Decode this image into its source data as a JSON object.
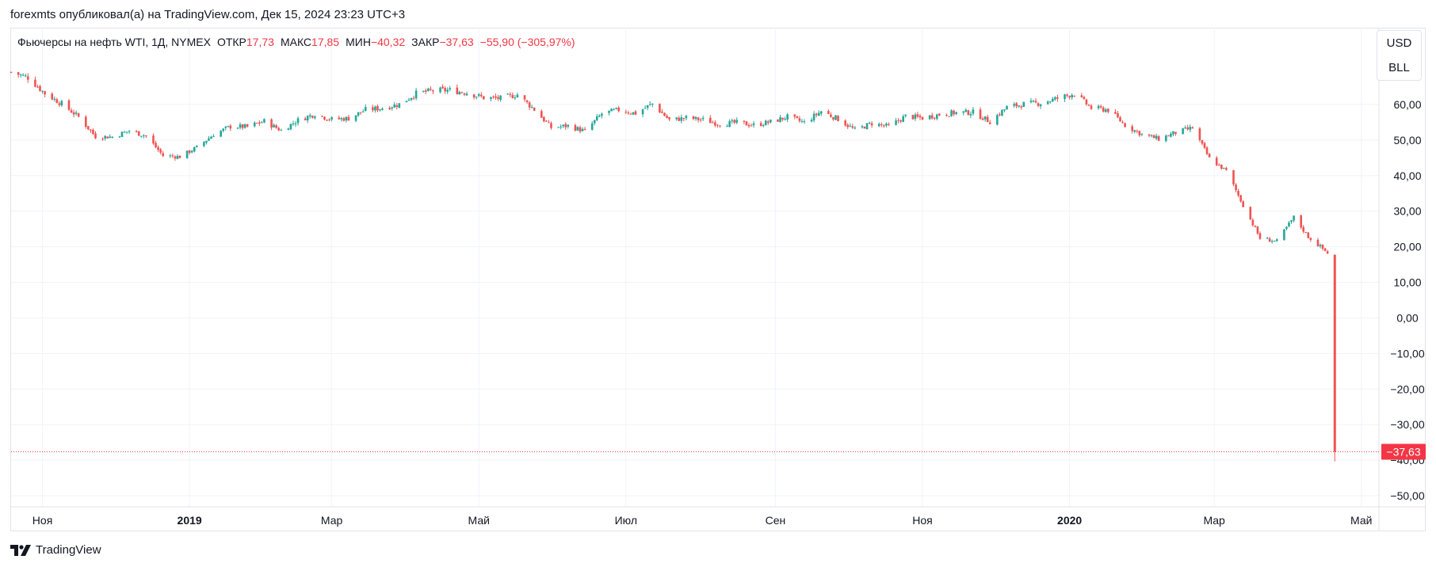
{
  "header": {
    "published": "forexmts опубликовал(а) на TradingView.com, Дек 15, 2024 23:23 UTC+3"
  },
  "legend": {
    "symbol": "Фьючерсы на нефть WTI, 1Д, NYMEX",
    "open_label": "ОТКР",
    "open": "17,73",
    "high_label": "МАКС",
    "high": "17,85",
    "low_label": "МИН",
    "low": "−40,32",
    "close_label": "ЗАКР",
    "close": "−37,63",
    "change": "−55,90 (−305,97%)"
  },
  "currency": {
    "unit": "USD",
    "measure": "BLL"
  },
  "footer": {
    "brand": "TradingView"
  },
  "colors": {
    "up": "#26a69a",
    "down": "#ef5350",
    "grid": "#f0f3fa",
    "price_line": "#f23645"
  },
  "chart_data": {
    "type": "candlestick",
    "title": "Фьючерсы на нефть WTI, 1Д, NYMEX",
    "ylim": [
      -52,
      70
    ],
    "y_ticks": [
      60,
      50,
      40,
      30,
      20,
      10,
      0,
      -10,
      -20,
      -30,
      -40,
      -50
    ],
    "y_tick_labels": [
      "60,00",
      "50,00",
      "40,00",
      "30,00",
      "20,00",
      "10,00",
      "0,00",
      "−10,00",
      "−20,00",
      "−30,00",
      "−40,00",
      "−50,00"
    ],
    "x_range": [
      "2018-10-19",
      "2020-05-07"
    ],
    "x_ticks": [
      {
        "date": "2018-11-01",
        "label": "Ноя",
        "bold": false
      },
      {
        "date": "2019-01-01",
        "label": "2019",
        "bold": true
      },
      {
        "date": "2019-03-01",
        "label": "Мар",
        "bold": false
      },
      {
        "date": "2019-05-01",
        "label": "Май",
        "bold": false
      },
      {
        "date": "2019-07-01",
        "label": "Июл",
        "bold": false
      },
      {
        "date": "2019-09-01",
        "label": "Сен",
        "bold": false
      },
      {
        "date": "2019-11-01",
        "label": "Ноя",
        "bold": false
      },
      {
        "date": "2020-01-01",
        "label": "2020",
        "bold": true
      },
      {
        "date": "2020-03-01",
        "label": "Мар",
        "bold": false
      },
      {
        "date": "2020-05-01",
        "label": "Май",
        "bold": false
      }
    ],
    "close_series": [
      [
        "2018-10-19",
        69.1
      ],
      [
        "2018-10-26",
        67.6
      ],
      [
        "2018-11-02",
        63.1
      ],
      [
        "2018-11-09",
        60.2
      ],
      [
        "2018-11-16",
        56.5
      ],
      [
        "2018-11-23",
        51.0
      ],
      [
        "2018-11-30",
        50.9
      ],
      [
        "2018-12-07",
        52.6
      ],
      [
        "2018-12-14",
        51.2
      ],
      [
        "2018-12-21",
        45.6
      ],
      [
        "2018-12-28",
        45.3
      ],
      [
        "2019-01-04",
        47.9
      ],
      [
        "2019-01-11",
        51.6
      ],
      [
        "2019-01-18",
        53.8
      ],
      [
        "2019-01-25",
        53.7
      ],
      [
        "2019-02-01",
        55.3
      ],
      [
        "2019-02-08",
        52.7
      ],
      [
        "2019-02-15",
        55.6
      ],
      [
        "2019-02-22",
        57.3
      ],
      [
        "2019-03-01",
        55.8
      ],
      [
        "2019-03-08",
        56.1
      ],
      [
        "2019-03-15",
        58.5
      ],
      [
        "2019-03-22",
        59.0
      ],
      [
        "2019-03-29",
        60.1
      ],
      [
        "2019-04-05",
        63.1
      ],
      [
        "2019-04-12",
        63.9
      ],
      [
        "2019-04-19",
        64.0
      ],
      [
        "2019-04-26",
        63.3
      ],
      [
        "2019-05-03",
        61.9
      ],
      [
        "2019-05-10",
        61.7
      ],
      [
        "2019-05-17",
        62.8
      ],
      [
        "2019-05-24",
        58.6
      ],
      [
        "2019-05-31",
        53.5
      ],
      [
        "2019-06-07",
        54.0
      ],
      [
        "2019-06-14",
        52.5
      ],
      [
        "2019-06-21",
        57.4
      ],
      [
        "2019-06-28",
        58.5
      ],
      [
        "2019-07-05",
        57.5
      ],
      [
        "2019-07-12",
        60.2
      ],
      [
        "2019-07-19",
        55.6
      ],
      [
        "2019-07-26",
        56.2
      ],
      [
        "2019-08-02",
        55.7
      ],
      [
        "2019-08-09",
        54.5
      ],
      [
        "2019-08-16",
        54.9
      ],
      [
        "2019-08-23",
        54.2
      ],
      [
        "2019-08-30",
        55.1
      ],
      [
        "2019-09-06",
        56.5
      ],
      [
        "2019-09-13",
        54.9
      ],
      [
        "2019-09-20",
        58.1
      ],
      [
        "2019-09-27",
        55.9
      ],
      [
        "2019-10-04",
        52.8
      ],
      [
        "2019-10-11",
        54.7
      ],
      [
        "2019-10-18",
        53.8
      ],
      [
        "2019-10-25",
        56.7
      ],
      [
        "2019-11-01",
        56.2
      ],
      [
        "2019-11-08",
        57.2
      ],
      [
        "2019-11-15",
        57.7
      ],
      [
        "2019-11-22",
        57.8
      ],
      [
        "2019-11-29",
        55.2
      ],
      [
        "2019-12-06",
        59.2
      ],
      [
        "2019-12-13",
        60.1
      ],
      [
        "2019-12-20",
        60.4
      ],
      [
        "2019-12-27",
        61.7
      ],
      [
        "2020-01-03",
        63.1
      ],
      [
        "2020-01-10",
        59.0
      ],
      [
        "2020-01-17",
        58.5
      ],
      [
        "2020-01-24",
        54.2
      ],
      [
        "2020-01-31",
        51.6
      ],
      [
        "2020-02-07",
        50.3
      ],
      [
        "2020-02-14",
        52.1
      ],
      [
        "2020-02-21",
        53.4
      ],
      [
        "2020-02-28",
        44.8
      ],
      [
        "2020-03-06",
        41.3
      ],
      [
        "2020-03-13",
        31.7
      ],
      [
        "2020-03-20",
        22.4
      ],
      [
        "2020-03-27",
        21.5
      ],
      [
        "2020-04-03",
        28.3
      ],
      [
        "2020-04-09",
        22.8
      ],
      [
        "2020-04-17",
        18.3
      ],
      [
        "2020-04-20",
        -37.63
      ]
    ],
    "last_bar": {
      "date": "2020-04-20",
      "open": 17.73,
      "high": 17.85,
      "low": -40.32,
      "close": -37.63
    },
    "last_price_label": "−37,63"
  }
}
